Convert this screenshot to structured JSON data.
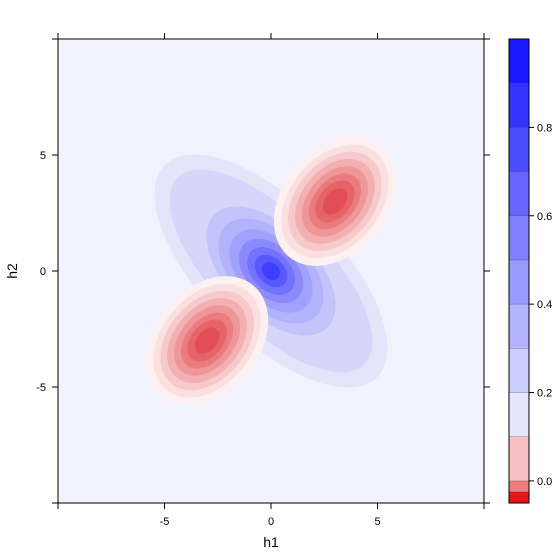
{
  "chart_data": {
    "type": "heatmap",
    "style": "filled-contour",
    "xlabel": "h1",
    "ylabel": "h2",
    "xlim": [
      -10,
      10
    ],
    "ylim": [
      -10,
      10
    ],
    "x_ticks": [
      -5,
      0,
      5
    ],
    "y_ticks": [
      -5,
      0,
      5
    ],
    "x_tick_labels": [
      "-5",
      "0",
      "5"
    ],
    "y_tick_labels": [
      "-5",
      "0",
      "5"
    ],
    "grid": false,
    "colorbar": {
      "position": "right",
      "range": [
        -0.05,
        1.0
      ],
      "ticks": [
        0.0,
        0.2,
        0.4,
        0.6,
        0.8
      ],
      "tick_labels": [
        "0.0",
        "0.2",
        "0.4",
        "0.6",
        "0.8"
      ],
      "breaks": [
        -0.05,
        -0.025,
        0,
        0.1,
        0.2,
        0.3,
        0.4,
        0.5,
        0.6,
        0.7,
        0.8,
        0.9,
        1.0
      ],
      "colors": [
        "#e8161c",
        "#f07a7e",
        "#f8c0c2",
        "#e6e6ff",
        "#cccdff",
        "#b3b3ff",
        "#999aff",
        "#8080ff",
        "#6666ff",
        "#4d4dff",
        "#3333ff",
        "#1a1aff",
        "#0000ff"
      ]
    },
    "features": [
      {
        "kind": "peak",
        "x": 0,
        "y": 0,
        "value": 0.8
      },
      {
        "kind": "trough",
        "x": 3,
        "y": 3,
        "value": -0.05
      },
      {
        "kind": "trough",
        "x": -3,
        "y": -3,
        "value": -0.05
      }
    ]
  }
}
